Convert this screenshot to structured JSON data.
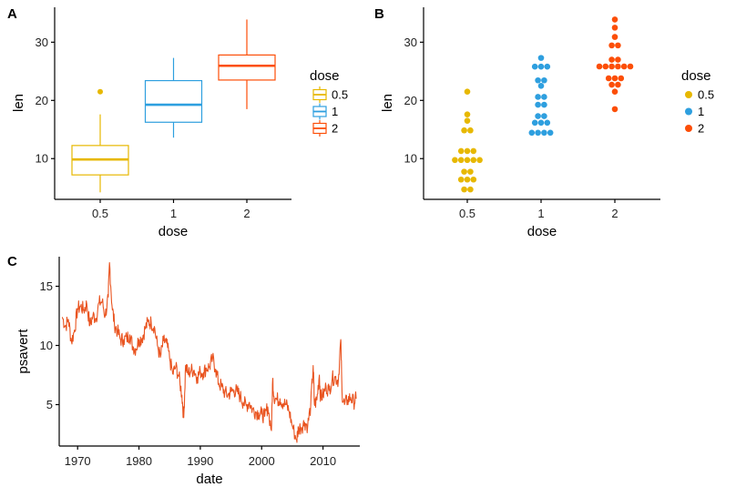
{
  "chart_data": [
    {
      "tag": "A",
      "type": "boxplot",
      "xlabel": "dose",
      "ylabel": "len",
      "categories": [
        "0.5",
        "1",
        "2"
      ],
      "ylim": [
        3,
        36
      ],
      "yticks": [
        "10",
        "20",
        "30"
      ],
      "legend": {
        "title": "dose",
        "placement": "right",
        "labels": [
          "0.5",
          "1",
          "2"
        ]
      },
      "colors": [
        "#E7B800",
        "#2E9FDF",
        "#FC4E07"
      ],
      "boxes": [
        {
          "min": 4.2,
          "q1": 7.2,
          "median": 9.85,
          "q3": 12.25,
          "max": 17.6,
          "outliers": [
            21.5
          ]
        },
        {
          "min": 13.6,
          "q1": 16.25,
          "median": 19.25,
          "q3": 23.4,
          "max": 27.3,
          "outliers": []
        },
        {
          "min": 18.5,
          "q1": 23.5,
          "median": 25.95,
          "q3": 27.8,
          "max": 33.9,
          "outliers": []
        }
      ]
    },
    {
      "tag": "B",
      "type": "dotplot",
      "xlabel": "dose",
      "ylabel": "len",
      "categories": [
        "0.5",
        "1",
        "2"
      ],
      "ylim": [
        3,
        36
      ],
      "yticks": [
        "10",
        "20",
        "30"
      ],
      "legend": {
        "title": "dose",
        "placement": "right",
        "labels": [
          "0.5",
          "1",
          "2"
        ]
      },
      "colors": [
        "#E7B800",
        "#2E9FDF",
        "#FC4E07"
      ],
      "values": [
        [
          4.2,
          11.5,
          7.3,
          5.8,
          6.4,
          10.0,
          11.2,
          11.2,
          5.2,
          7.0,
          15.2,
          21.5,
          17.6,
          9.7,
          14.5,
          10.0,
          8.2,
          9.4,
          16.5,
          9.7
        ],
        [
          16.5,
          16.5,
          15.2,
          17.3,
          22.5,
          17.3,
          13.6,
          14.5,
          18.8,
          15.5,
          19.7,
          23.3,
          23.6,
          26.4,
          20.0,
          25.2,
          25.8,
          21.2,
          14.5,
          27.3
        ],
        [
          23.6,
          18.5,
          33.9,
          25.5,
          26.4,
          32.5,
          26.7,
          21.5,
          23.3,
          29.5,
          25.5,
          26.4,
          22.4,
          24.5,
          24.8,
          30.9,
          26.4,
          27.3,
          29.4,
          23.0
        ]
      ]
    },
    {
      "tag": "C",
      "type": "line",
      "xlabel": "date",
      "ylabel": "psavert",
      "xlim": [
        1967,
        2016
      ],
      "ylim": [
        1.5,
        17.5
      ],
      "xticks": [
        "1970",
        "1980",
        "1990",
        "2000",
        "2010"
      ],
      "yticks": [
        "5",
        "10",
        "15"
      ],
      "color": "#E95420",
      "series": [
        {
          "values": [
            [
              1967.5,
              12.4
            ],
            [
              1968,
              11.6
            ],
            [
              1968.5,
              12.2
            ],
            [
              1969,
              10.3
            ],
            [
              1969.5,
              11.3
            ],
            [
              1970,
              13.1
            ],
            [
              1970.5,
              13.3
            ],
            [
              1971,
              13.0
            ],
            [
              1971.5,
              13.5
            ],
            [
              1972,
              11.7
            ],
            [
              1972.5,
              12.5
            ],
            [
              1973,
              12.3
            ],
            [
              1973.5,
              13.6
            ],
            [
              1974,
              13.7
            ],
            [
              1974.5,
              12.5
            ],
            [
              1975,
              14.1
            ],
            [
              1975.2,
              17.0
            ],
            [
              1975.6,
              13.4
            ],
            [
              1976,
              11.8
            ],
            [
              1976.5,
              11.2
            ],
            [
              1977,
              10.5
            ],
            [
              1977.5,
              10.5
            ],
            [
              1978,
              10.6
            ],
            [
              1978.5,
              10.9
            ],
            [
              1979,
              9.9
            ],
            [
              1979.5,
              9.7
            ],
            [
              1980,
              10.5
            ],
            [
              1980.5,
              10.6
            ],
            [
              1981,
              11.4
            ],
            [
              1981.5,
              12.0
            ],
            [
              1982,
              11.9
            ],
            [
              1982.5,
              11.6
            ],
            [
              1983,
              10.0
            ],
            [
              1983.5,
              9.0
            ],
            [
              1984,
              10.4
            ],
            [
              1984.5,
              10.2
            ],
            [
              1985,
              8.9
            ],
            [
              1985.5,
              7.6
            ],
            [
              1986,
              8.2
            ],
            [
              1986.5,
              7.4
            ],
            [
              1987,
              5.8
            ],
            [
              1987.3,
              3.9
            ],
            [
              1987.6,
              8.3
            ],
            [
              1988,
              7.6
            ],
            [
              1988.5,
              7.9
            ],
            [
              1989,
              7.9
            ],
            [
              1989.5,
              7.3
            ],
            [
              1990,
              7.8
            ],
            [
              1990.5,
              7.7
            ],
            [
              1991,
              8.1
            ],
            [
              1991.5,
              8.2
            ],
            [
              1992,
              8.9
            ],
            [
              1992.5,
              8.0
            ],
            [
              1993,
              6.8
            ],
            [
              1993.5,
              6.5
            ],
            [
              1994,
              6.0
            ],
            [
              1994.5,
              5.8
            ],
            [
              1995,
              6.1
            ],
            [
              1995.5,
              6.2
            ],
            [
              1996,
              6.1
            ],
            [
              1996.5,
              5.7
            ],
            [
              1997,
              5.2
            ],
            [
              1997.5,
              4.9
            ],
            [
              1998,
              5.2
            ],
            [
              1998.5,
              4.6
            ],
            [
              1999,
              4.4
            ],
            [
              1999.5,
              4.3
            ],
            [
              2000,
              4.2
            ],
            [
              2000.5,
              4.0
            ],
            [
              2001,
              4.8
            ],
            [
              2001.6,
              2.8
            ],
            [
              2001.8,
              7.2
            ],
            [
              2002,
              5.7
            ],
            [
              2002.5,
              5.4
            ],
            [
              2003,
              5.5
            ],
            [
              2003.5,
              5.1
            ],
            [
              2004,
              5.0
            ],
            [
              2004.5,
              4.4
            ],
            [
              2005,
              3.2
            ],
            [
              2005.7,
              2.0
            ],
            [
              2006,
              3.0
            ],
            [
              2006.5,
              3.1
            ],
            [
              2007,
              3.5
            ],
            [
              2007.5,
              3.2
            ],
            [
              2008,
              4.9
            ],
            [
              2008.4,
              8.3
            ],
            [
              2008.6,
              5.0
            ],
            [
              2009,
              5.4
            ],
            [
              2009.4,
              7.5
            ],
            [
              2009.6,
              5.6
            ],
            [
              2010,
              5.8
            ],
            [
              2010.5,
              6.5
            ],
            [
              2011,
              6.2
            ],
            [
              2011.5,
              7.2
            ],
            [
              2012,
              7.3
            ],
            [
              2012.5,
              7.0
            ],
            [
              2012.9,
              10.5
            ],
            [
              2013.1,
              6.0
            ],
            [
              2013.5,
              5.0
            ],
            [
              2014,
              5.4
            ],
            [
              2014.5,
              5.6
            ],
            [
              2015,
              5.2
            ],
            [
              2015.4,
              5.5
            ]
          ]
        }
      ]
    }
  ]
}
